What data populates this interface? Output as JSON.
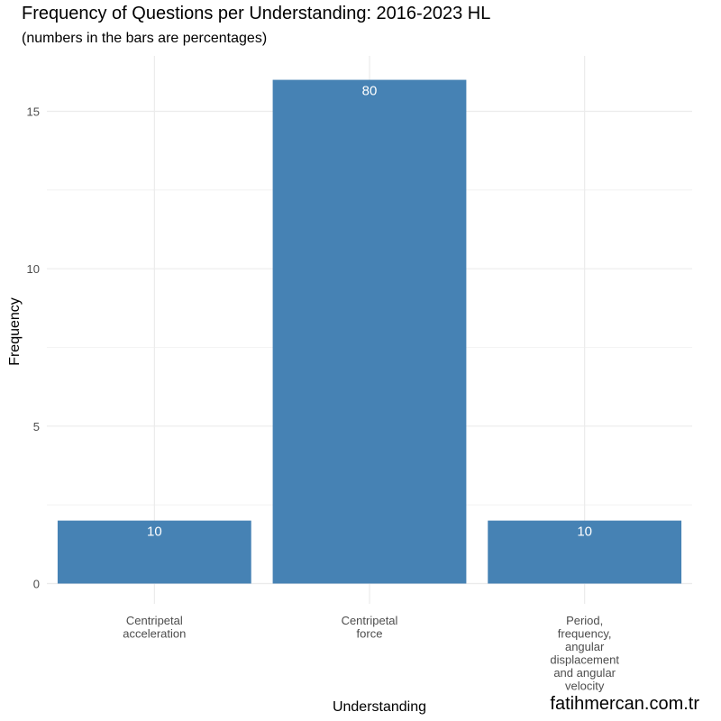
{
  "chart_data": {
    "type": "bar",
    "title": "Frequency of Questions per Understanding: 2016-2023 HL",
    "subtitle": "(numbers in the bars are percentages)",
    "xlabel": "Understanding",
    "ylabel": "Frequency",
    "categories": [
      [
        "Centripetal",
        "acceleration"
      ],
      [
        "Centripetal",
        "force"
      ],
      [
        "Period,",
        "frequency,",
        "angular",
        "displacement",
        "and angular",
        "velocity"
      ]
    ],
    "values": [
      2,
      16,
      2
    ],
    "bar_labels": [
      "10",
      "80",
      "10"
    ],
    "yticks": [
      0,
      5,
      10,
      15
    ],
    "ylim": [
      0,
      16.8
    ],
    "grid": true,
    "legend": "none",
    "bar_color": "#4682b4"
  },
  "watermark": "fatihmercan.com.tr"
}
